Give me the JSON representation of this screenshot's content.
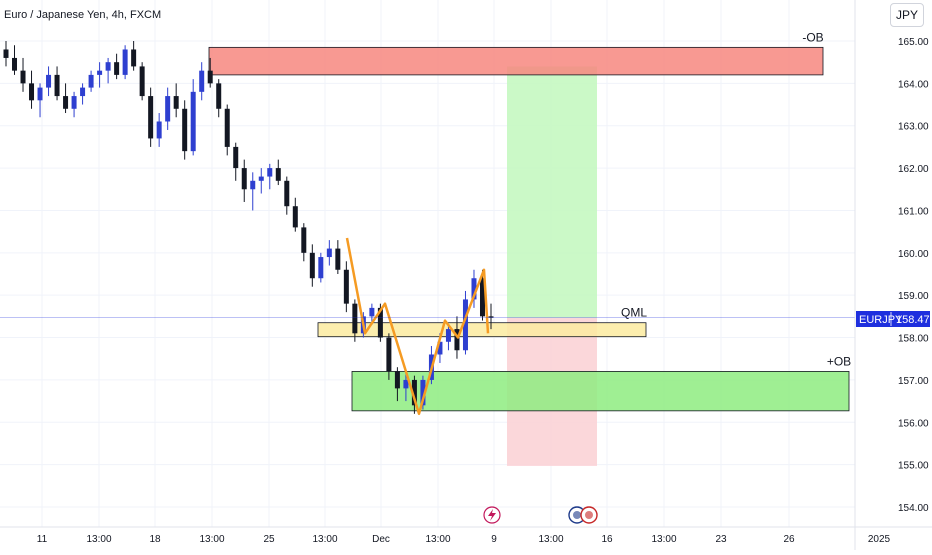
{
  "chart_data": {
    "type": "candlestick",
    "title": "Euro / Japanese Yen, 4h, FXCM",
    "symbol": "EURJPY",
    "last_price": 158.47,
    "currency": "JPY",
    "ylim": [
      153.7,
      165.5
    ],
    "y_ticks": [
      154,
      155,
      156,
      157,
      158,
      159,
      160,
      161,
      162,
      163,
      164,
      165
    ],
    "x_ticks": [
      "11",
      "13:00",
      "18",
      "13:00",
      "25",
      "13:00",
      "Dec",
      "13:00",
      "9",
      "13:00",
      "16",
      "13:00",
      "23",
      "26",
      "2025"
    ],
    "price_line": 158.47,
    "zones": [
      {
        "label": "-OB",
        "color": "#f7877f",
        "top": 164.85,
        "bottom": 164.2
      },
      {
        "label": "QML",
        "color": "#fbeba0",
        "top": 158.35,
        "bottom": 158.02
      },
      {
        "label": "+OB",
        "color": "#8eec80",
        "top": 157.2,
        "bottom": 156.27
      }
    ],
    "position": {
      "entry": 158.47,
      "target": 164.4,
      "stop": 154.97
    },
    "pattern": [
      160.35,
      158.1,
      158.8,
      156.2,
      158.4,
      158.0,
      159.6,
      158.1
    ],
    "candles": [
      [
        164.8,
        165.0,
        164.4,
        164.6
      ],
      [
        164.6,
        164.9,
        164.2,
        164.3
      ],
      [
        164.3,
        164.6,
        163.8,
        164.0
      ],
      [
        164.0,
        164.3,
        163.4,
        163.6
      ],
      [
        163.6,
        164.0,
        163.2,
        163.9
      ],
      [
        163.9,
        164.4,
        163.7,
        164.2
      ],
      [
        164.2,
        164.4,
        163.6,
        163.7
      ],
      [
        163.7,
        164.0,
        163.3,
        163.4
      ],
      [
        163.4,
        163.8,
        163.2,
        163.7
      ],
      [
        163.7,
        164.0,
        163.5,
        163.9
      ],
      [
        163.9,
        164.3,
        163.8,
        164.2
      ],
      [
        164.2,
        164.5,
        163.9,
        164.3
      ],
      [
        164.3,
        164.6,
        164.0,
        164.5
      ],
      [
        164.5,
        164.7,
        164.1,
        164.2
      ],
      [
        164.2,
        164.9,
        164.1,
        164.8
      ],
      [
        164.8,
        165.0,
        164.3,
        164.4
      ],
      [
        164.4,
        164.5,
        163.6,
        163.7
      ],
      [
        163.7,
        163.9,
        162.5,
        162.7
      ],
      [
        162.7,
        163.3,
        162.5,
        163.1
      ],
      [
        163.1,
        163.9,
        162.9,
        163.7
      ],
      [
        163.7,
        164.0,
        163.2,
        163.4
      ],
      [
        163.4,
        163.6,
        162.2,
        162.4
      ],
      [
        162.4,
        164.1,
        162.3,
        163.8
      ],
      [
        163.8,
        164.5,
        163.6,
        164.3
      ],
      [
        164.3,
        164.6,
        163.9,
        164.0
      ],
      [
        164.0,
        164.1,
        163.2,
        163.4
      ],
      [
        163.4,
        163.5,
        162.3,
        162.5
      ],
      [
        162.5,
        162.6,
        161.7,
        162.0
      ],
      [
        162.0,
        162.2,
        161.2,
        161.5
      ],
      [
        161.5,
        161.9,
        161.0,
        161.7
      ],
      [
        161.7,
        162.0,
        161.4,
        161.8
      ],
      [
        161.8,
        162.1,
        161.5,
        162.0
      ],
      [
        162.0,
        162.2,
        161.6,
        161.7
      ],
      [
        161.7,
        161.8,
        160.9,
        161.1
      ],
      [
        161.1,
        161.3,
        160.5,
        160.6
      ],
      [
        160.6,
        160.7,
        159.8,
        160.0
      ],
      [
        160.0,
        160.2,
        159.2,
        159.4
      ],
      [
        159.4,
        160.0,
        159.3,
        159.9
      ],
      [
        159.9,
        160.3,
        159.7,
        160.1
      ],
      [
        160.1,
        160.3,
        159.5,
        159.6
      ],
      [
        159.6,
        159.8,
        158.6,
        158.8
      ],
      [
        158.8,
        158.9,
        157.9,
        158.1
      ],
      [
        158.1,
        158.6,
        158.0,
        158.5
      ],
      [
        158.5,
        158.8,
        158.3,
        158.7
      ],
      [
        158.7,
        158.8,
        157.9,
        158.0
      ],
      [
        158.0,
        158.1,
        157.0,
        157.2
      ],
      [
        157.2,
        157.3,
        156.5,
        156.8
      ],
      [
        156.8,
        157.2,
        156.5,
        157.0
      ],
      [
        157.0,
        157.1,
        156.2,
        156.4
      ],
      [
        156.4,
        157.1,
        156.3,
        157.0
      ],
      [
        157.0,
        157.8,
        156.9,
        157.6
      ],
      [
        157.6,
        158.1,
        157.4,
        157.9
      ],
      [
        157.9,
        158.3,
        157.7,
        158.2
      ],
      [
        158.2,
        158.5,
        157.5,
        157.7
      ],
      [
        157.7,
        159.1,
        157.6,
        158.9
      ],
      [
        158.9,
        159.6,
        158.7,
        159.4
      ],
      [
        159.4,
        159.6,
        158.4,
        158.5
      ],
      [
        158.5,
        158.8,
        158.2,
        158.47
      ]
    ]
  },
  "ui": {
    "currency_button": "JPY",
    "price_label_symbol": "EURJPY",
    "price_label_value": "158.470"
  },
  "colors": {
    "up": "#089981",
    "down": "#131722",
    "price_line": "#1e2fde",
    "profit": "#c5f8c1",
    "loss": "#fbd3d6",
    "pattern": "#f59b23"
  }
}
